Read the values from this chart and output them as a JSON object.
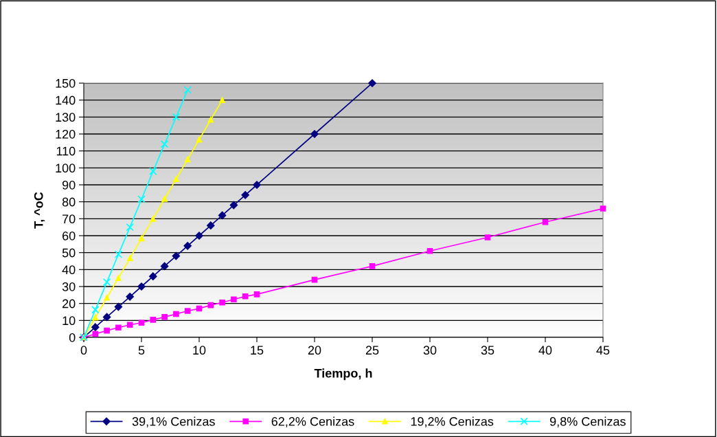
{
  "chart_data": {
    "type": "line",
    "xlabel": "Tiempo, h",
    "ylabel": "T, ^oC",
    "xlim": [
      0,
      45
    ],
    "xticks": [
      0,
      5,
      10,
      15,
      20,
      25,
      30,
      35,
      40,
      45
    ],
    "ylim": [
      0,
      150
    ],
    "yticks": [
      0,
      10,
      20,
      30,
      40,
      50,
      60,
      70,
      80,
      90,
      100,
      110,
      120,
      130,
      140,
      150
    ],
    "grid": "y",
    "legend": "bottom",
    "series": [
      {
        "name": "39,1% Cenizas",
        "color": "#000080",
        "marker": "diamond",
        "x": [
          0,
          1,
          2,
          3,
          4,
          5,
          6,
          7,
          8,
          9,
          10,
          11,
          12,
          13,
          14,
          15,
          20,
          25
        ],
        "values": [
          0,
          6,
          12,
          18,
          24,
          30,
          36,
          42,
          48,
          54,
          60,
          66,
          72,
          78,
          84,
          90,
          120,
          150
        ]
      },
      {
        "name": "62,2% Cenizas",
        "color": "#ff00ff",
        "marker": "square",
        "x": [
          0,
          1,
          2,
          3,
          4,
          5,
          6,
          7,
          8,
          9,
          10,
          11,
          12,
          13,
          14,
          15,
          20,
          25,
          30,
          35,
          40,
          45
        ],
        "values": [
          0,
          2,
          4,
          5.8,
          7.4,
          8.6,
          10.4,
          12,
          13.8,
          15.6,
          17,
          19,
          20.6,
          22.4,
          24.2,
          25.4,
          34,
          42,
          51,
          59,
          68,
          76
        ]
      },
      {
        "name": "19,2% Cenizas",
        "color": "#ffff00",
        "marker": "triangle",
        "x": [
          0,
          1,
          2,
          3,
          4,
          5,
          6,
          7,
          8,
          9,
          10,
          11,
          12
        ],
        "values": [
          0,
          11.7,
          23.4,
          35,
          46.7,
          58.4,
          70,
          81.7,
          93.4,
          105,
          116.7,
          128.4,
          140
        ]
      },
      {
        "name": "9,8% Cenizas",
        "color": "#00ffff",
        "marker": "cross",
        "x": [
          0,
          1,
          2,
          3,
          4,
          5,
          6,
          7,
          8,
          9
        ],
        "values": [
          0,
          16.3,
          32.6,
          49,
          65,
          81.5,
          98,
          114,
          130,
          146
        ]
      }
    ]
  }
}
